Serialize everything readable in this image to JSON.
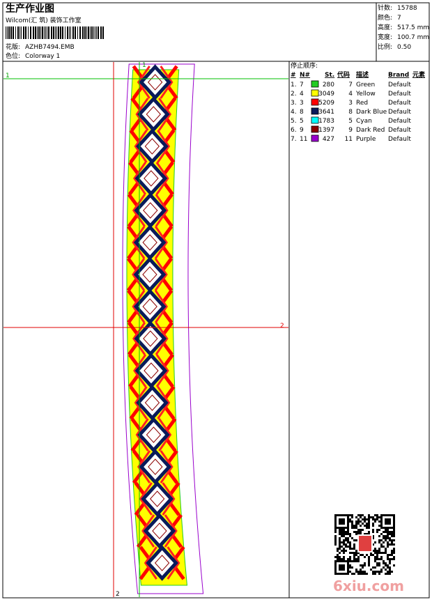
{
  "header": {
    "title": "生产作业图",
    "studio": "Wilcom(汇 筑) 装饰工作室",
    "design_label": "花版:",
    "design": "AZHB7494.EMB",
    "colorway_label": "色位:",
    "colorway": "Colorway 1"
  },
  "stats": [
    {
      "label": "针数:",
      "value": "15788"
    },
    {
      "label": "颜色:",
      "value": "7"
    },
    {
      "label": "高度:",
      "value": "517.5 mm"
    },
    {
      "label": "宽度:",
      "value": "100.7 mm"
    },
    {
      "label": "比例:",
      "value": "0.50"
    }
  ],
  "guides": {
    "top_left": "1",
    "top_vertical": "1",
    "right_horizontal": "2",
    "bottom_vertical": "2"
  },
  "stop_sequence": {
    "title": "停止顺序:",
    "columns": [
      "#",
      "N#",
      "St.",
      "代码",
      "描述",
      "Brand",
      "元素"
    ],
    "rows": [
      {
        "index": "1.",
        "n": 7,
        "color": "#22cc22",
        "stitches": 280,
        "code": 7,
        "description": "Green",
        "brand": "Default"
      },
      {
        "index": "2.",
        "n": 4,
        "color": "#ffff00",
        "stitches": 3049,
        "code": 4,
        "description": "Yellow",
        "brand": "Default"
      },
      {
        "index": "3.",
        "n": 3,
        "color": "#ff0000",
        "stitches": 5209,
        "code": 3,
        "description": "Red",
        "brand": "Default"
      },
      {
        "index": "4.",
        "n": 8,
        "color": "#0a1a5a",
        "stitches": 3641,
        "code": 8,
        "description": "Dark Blue",
        "brand": "Default"
      },
      {
        "index": "5.",
        "n": 5,
        "color": "#00ffff",
        "stitches": 1783,
        "code": 5,
        "description": "Cyan",
        "brand": "Default"
      },
      {
        "index": "6.",
        "n": 9,
        "color": "#8b0000",
        "stitches": 1397,
        "code": 9,
        "description": "Dark Red",
        "brand": "Default"
      },
      {
        "index": "7.",
        "n": 11,
        "color": "#9900cc",
        "stitches": 427,
        "code": 11,
        "description": "Purple",
        "brand": "Default"
      }
    ]
  },
  "watermark": "6xiu.com"
}
